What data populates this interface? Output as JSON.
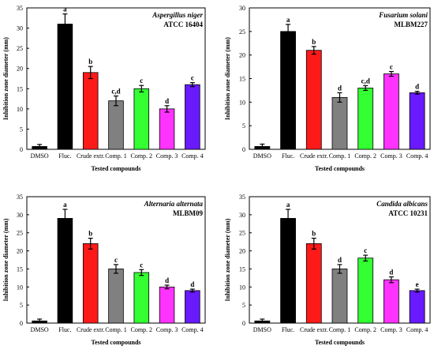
{
  "colors": {
    "DMSO": "#000000",
    "Fluc.": "#000000",
    "Crude extr.": "#ff1a1a",
    "Comp. 1": "#808080",
    "Comp. 2": "#33ff33",
    "Comp. 3": "#ff33ff",
    "Comp. 4": "#6a1aff"
  },
  "chart_data": [
    {
      "type": "bar",
      "organism": "Aspergillus niger",
      "strain": "ATCC 16404",
      "xlabel": "Tested compounds",
      "ylabel": "Inhibition zone diameter (mm)",
      "ylim": [
        0,
        35
      ],
      "yticks": [
        0,
        5,
        10,
        15,
        20,
        25,
        30,
        35
      ],
      "categories": [
        "DMSO",
        "Fluc.",
        "Crude extr.",
        "Comp. 1",
        "Comp. 2",
        "Comp. 3",
        "Comp. 4"
      ],
      "values": [
        0.7,
        31,
        19,
        12,
        15,
        10,
        16
      ],
      "errors": [
        0.5,
        2.5,
        1.5,
        1.2,
        0.8,
        0.8,
        0.5
      ],
      "letters": [
        "",
        "a",
        "b",
        "c,d",
        "c",
        "d",
        "c"
      ]
    },
    {
      "type": "bar",
      "organism": "Fusarium solani",
      "strain": "MLBM227",
      "xlabel": "Tested compounds",
      "ylabel": "Inhibition zone diameter (mm)",
      "ylim": [
        0,
        30
      ],
      "yticks": [
        0,
        5,
        10,
        15,
        20,
        25,
        30
      ],
      "categories": [
        "DMSO",
        "Fluc.",
        "Crude extr.",
        "Comp. 1",
        "Comp. 2",
        "Comp. 3",
        "Comp. 4"
      ],
      "values": [
        0.6,
        25,
        21,
        11,
        13,
        16,
        12
      ],
      "errors": [
        0.5,
        1.5,
        0.8,
        1.0,
        0.5,
        0.5,
        0.3
      ],
      "letters": [
        "",
        "a",
        "b",
        "d",
        "c,d",
        "c",
        "d"
      ]
    },
    {
      "type": "bar",
      "organism": "Alternaria alternata",
      "strain": "MLBM09",
      "xlabel": "Tested compounds",
      "ylabel": "Inhibition zone diameter (mm)",
      "ylim": [
        0,
        35
      ],
      "yticks": [
        0,
        5,
        10,
        15,
        20,
        25,
        30,
        35
      ],
      "categories": [
        "DMSO",
        "Fluc.",
        "Crude extr.",
        "Comp. 1",
        "Comp. 2",
        "Comp. 3",
        "Comp. 4"
      ],
      "values": [
        0.6,
        29,
        22,
        15,
        14,
        10,
        9
      ],
      "errors": [
        0.5,
        2.5,
        1.5,
        1.2,
        0.8,
        0.5,
        0.4
      ],
      "letters": [
        "",
        "a",
        "b",
        "c",
        "c",
        "d",
        "d"
      ]
    },
    {
      "type": "bar",
      "organism": "Candida albicans",
      "strain": "ATCC 10231",
      "xlabel": "Tested compounds",
      "ylabel": "Inhibition zone diameter (mm)",
      "ylim": [
        0,
        35
      ],
      "yticks": [
        0,
        5,
        10,
        15,
        20,
        25,
        30,
        35
      ],
      "categories": [
        "DMSO",
        "Fluc.",
        "Crude extr.",
        "Comp. 1",
        "Comp. 2",
        "Comp. 3",
        "Comp. 4"
      ],
      "values": [
        0.6,
        29,
        22,
        15,
        18,
        12,
        9
      ],
      "errors": [
        0.5,
        2.5,
        1.5,
        1.2,
        0.8,
        0.8,
        0.4
      ],
      "letters": [
        "",
        "a",
        "b",
        "d",
        "c",
        "d",
        "e"
      ]
    }
  ]
}
